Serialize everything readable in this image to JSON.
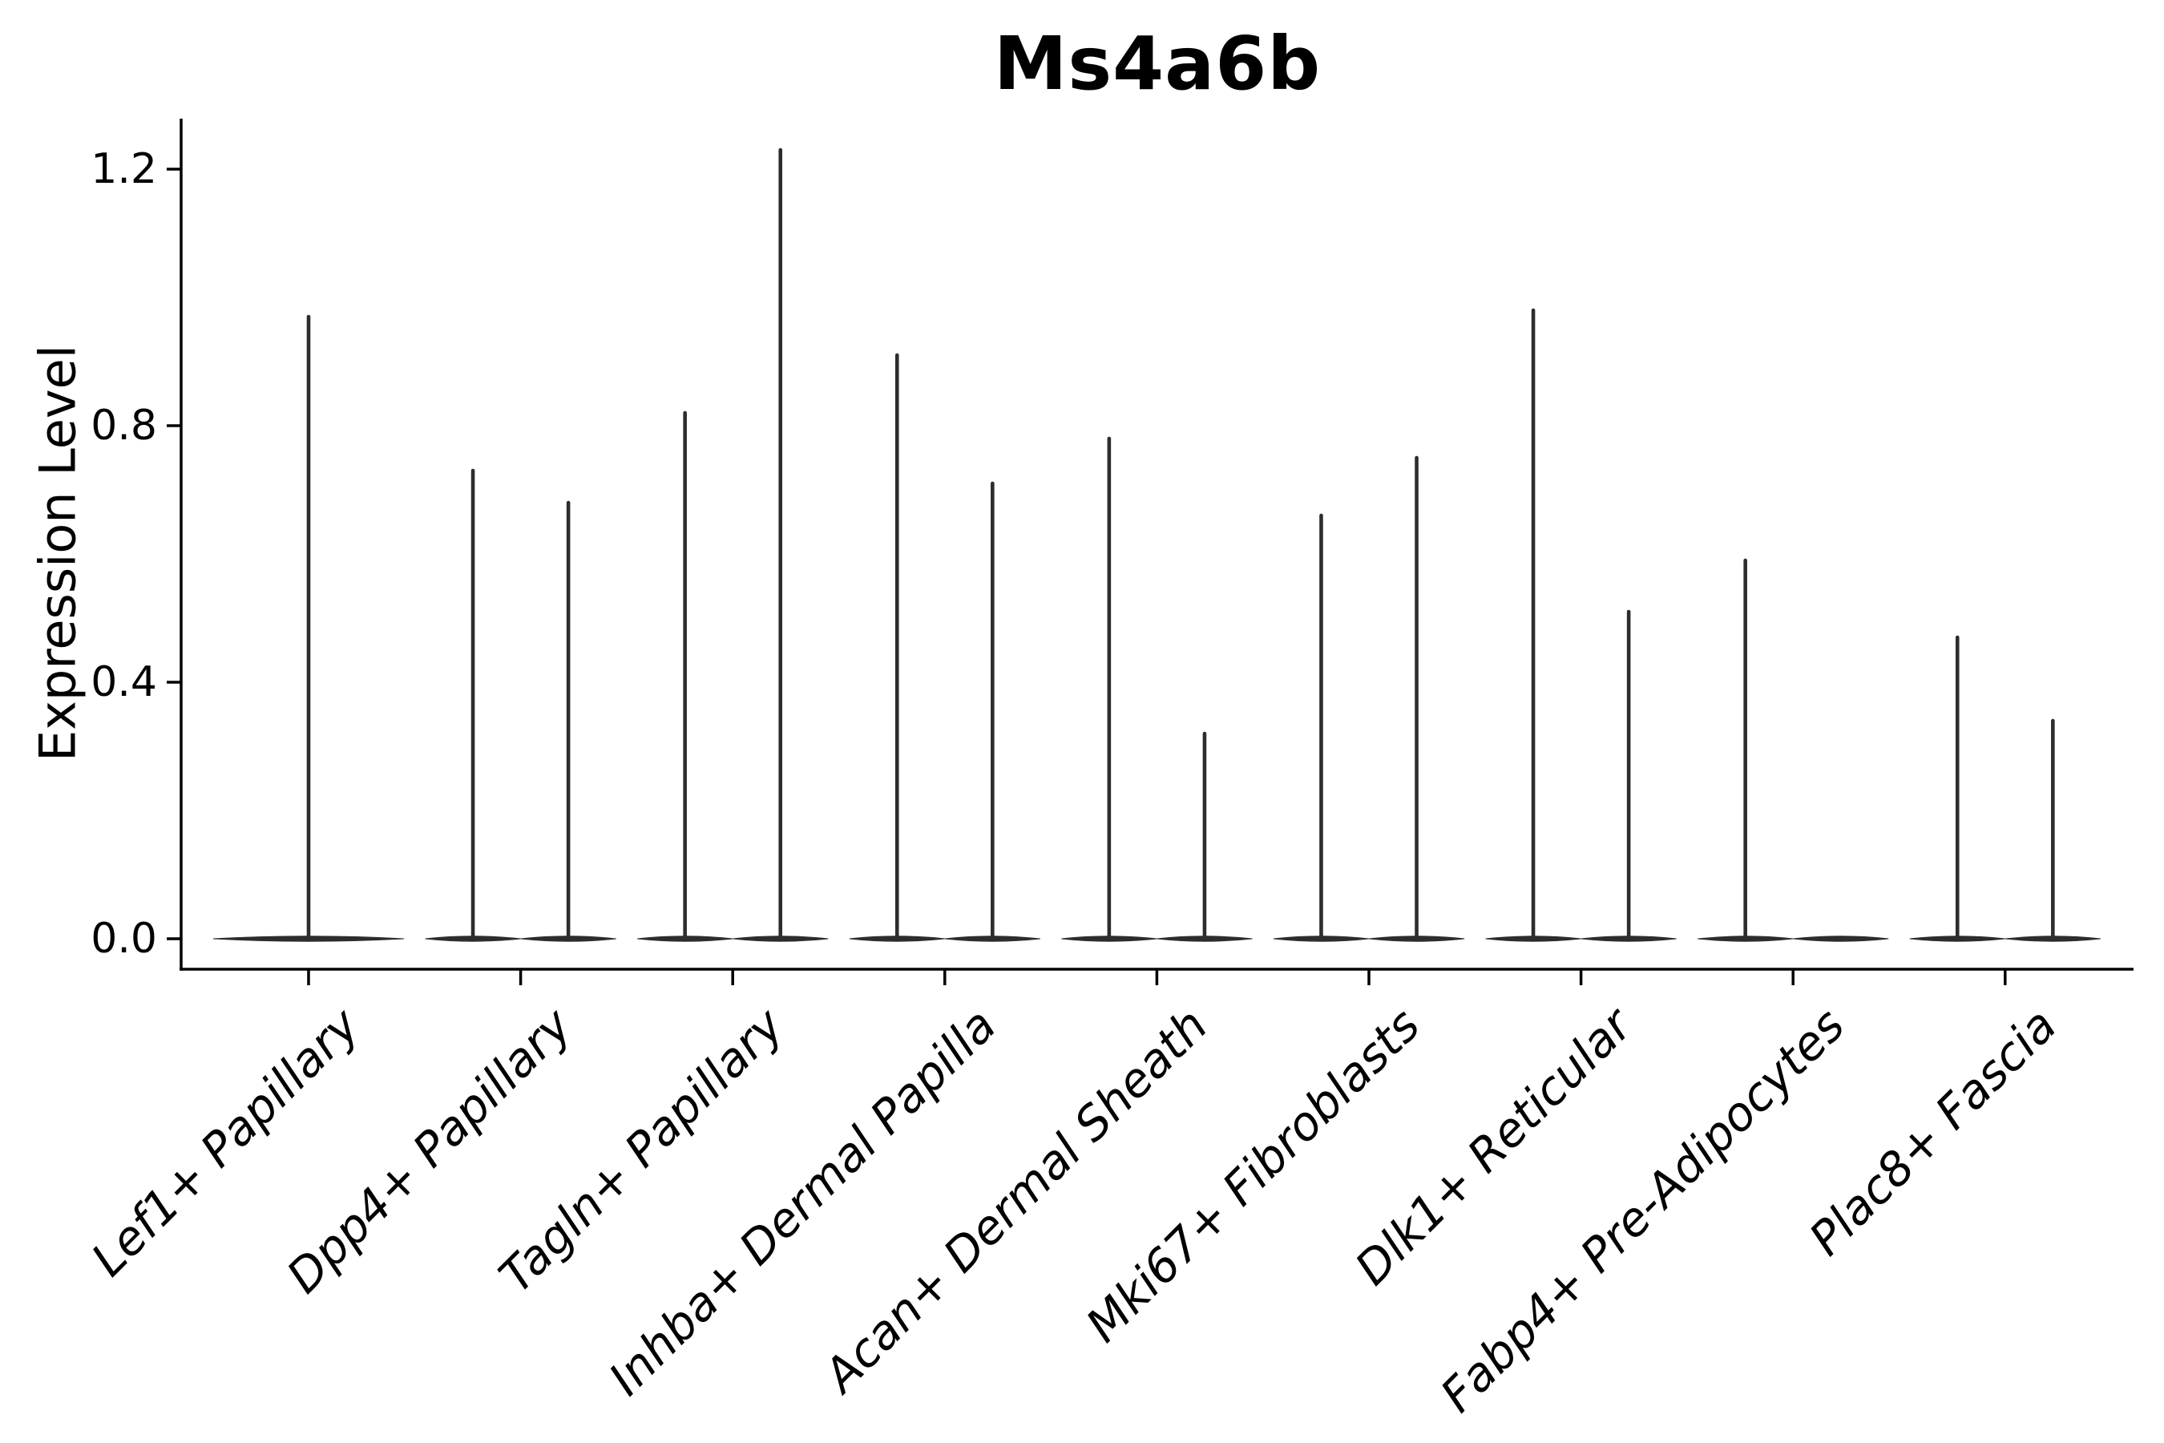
{
  "chart_data": {
    "type": "violin",
    "title": "Ms4a6b",
    "ylabel": "Expression Level",
    "xlabel": "",
    "legend": "none",
    "grid": false,
    "ylim": [
      0,
      1.28
    ],
    "ytick_labels": [
      "0.0",
      "0.4",
      "0.8",
      "1.2"
    ],
    "ytick_values": [
      0.0,
      0.4,
      0.8,
      1.2
    ],
    "categories": [
      "Lef1+ Papillary",
      "Dpp4+ Papillary",
      "Tagln+ Papillary",
      "Inhba+ Dermal Papilla",
      "Acan+ Dermal Sheath",
      "Mki67+ Fibroblasts",
      "Dlk1+ Reticular",
      "Fabp4+ Pre-Adipocytes",
      "Plac8+ Fascia"
    ],
    "groups": [
      {
        "category": "Lef1+ Papillary",
        "violins": [
          {
            "offset": 0.0,
            "width": 0.9,
            "max": 0.97
          }
        ]
      },
      {
        "category": "Dpp4+ Papillary",
        "violins": [
          {
            "offset": -0.225,
            "width": 0.45,
            "max": 0.73
          },
          {
            "offset": 0.225,
            "width": 0.45,
            "max": 0.68
          }
        ]
      },
      {
        "category": "Tagln+ Papillary",
        "violins": [
          {
            "offset": -0.225,
            "width": 0.45,
            "max": 0.82
          },
          {
            "offset": 0.225,
            "width": 0.45,
            "max": 1.23
          }
        ]
      },
      {
        "category": "Inhba+ Dermal Papilla",
        "violins": [
          {
            "offset": -0.225,
            "width": 0.45,
            "max": 0.91
          },
          {
            "offset": 0.225,
            "width": 0.45,
            "max": 0.71
          }
        ]
      },
      {
        "category": "Acan+ Dermal Sheath",
        "violins": [
          {
            "offset": -0.225,
            "width": 0.45,
            "max": 0.78
          },
          {
            "offset": 0.225,
            "width": 0.45,
            "max": 0.32
          }
        ]
      },
      {
        "category": "Mki67+ Fibroblasts",
        "violins": [
          {
            "offset": -0.225,
            "width": 0.45,
            "max": 0.66
          },
          {
            "offset": 0.225,
            "width": 0.45,
            "max": 0.75
          }
        ]
      },
      {
        "category": "Dlk1+ Reticular",
        "violins": [
          {
            "offset": -0.225,
            "width": 0.45,
            "max": 0.98
          },
          {
            "offset": 0.225,
            "width": 0.45,
            "max": 0.51
          }
        ]
      },
      {
        "category": "Fabp4+ Pre-Adipocytes",
        "violins": [
          {
            "offset": -0.225,
            "width": 0.45,
            "max": 0.59
          },
          {
            "offset": 0.225,
            "width": 0.45,
            "max": 0.0
          }
        ]
      },
      {
        "category": "Plac8+ Fascia",
        "violins": [
          {
            "offset": -0.225,
            "width": 0.45,
            "max": 0.47
          },
          {
            "offset": 0.225,
            "width": 0.45,
            "max": 0.34
          }
        ]
      }
    ],
    "style": {
      "violin_color": "#2d2d2d",
      "axis_color": "#000000",
      "text_color": "#000000",
      "background": "#ffffff"
    }
  }
}
